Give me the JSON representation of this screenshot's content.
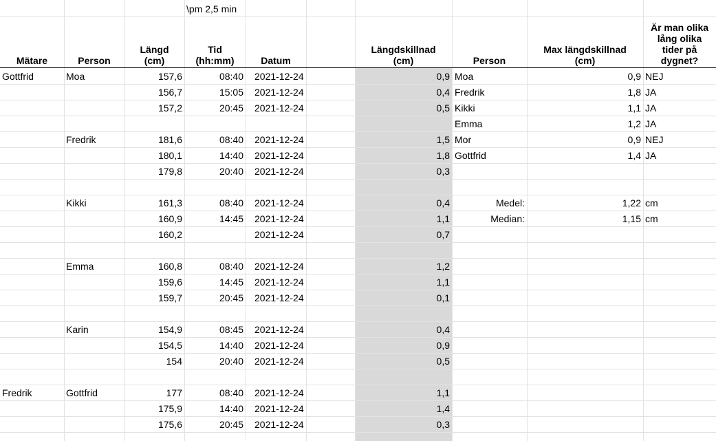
{
  "note_cell": "\\pm 2,5 min",
  "headers": {
    "matare": "Mätare",
    "person": "Person",
    "langd": "Längd\n(cm)",
    "tid": "Tid\n(hh:mm)",
    "datum": "Datum",
    "langdskillnad": "Längdskillnad\n(cm)",
    "person2": "Person",
    "max_langdskillnad": "Max längdskillnad\n(cm)",
    "olika": "Är man olika\nlång olika\ntider på\ndygnet?"
  },
  "rows": [
    {
      "matare": "Gottfrid",
      "person": "Moa",
      "langd": "157,6",
      "tid": "08:40",
      "datum": "2021-12-24",
      "diff": "0,9",
      "p2": "Moa",
      "max": "0,9",
      "svar": "NEJ"
    },
    {
      "matare": "",
      "person": "",
      "langd": "156,7",
      "tid": "15:05",
      "datum": "2021-12-24",
      "diff": "0,4",
      "p2": "Fredrik",
      "max": "1,8",
      "svar": "JA"
    },
    {
      "matare": "",
      "person": "",
      "langd": "157,2",
      "tid": "20:45",
      "datum": "2021-12-24",
      "diff": "0,5",
      "p2": "Kikki",
      "max": "1,1",
      "svar": "JA"
    },
    {
      "matare": "",
      "person": "",
      "langd": "",
      "tid": "",
      "datum": "",
      "diff": "",
      "p2": "Emma",
      "max": "1,2",
      "svar": "JA"
    },
    {
      "matare": "",
      "person": "Fredrik",
      "langd": "181,6",
      "tid": "08:40",
      "datum": "2021-12-24",
      "diff": "1,5",
      "p2": "Mor",
      "max": "0,9",
      "svar": "NEJ"
    },
    {
      "matare": "",
      "person": "",
      "langd": "180,1",
      "tid": "14:40",
      "datum": "2021-12-24",
      "diff": "1,8",
      "p2": "Gottfrid",
      "max": "1,4",
      "svar": "JA"
    },
    {
      "matare": "",
      "person": "",
      "langd": "179,8",
      "tid": "20:40",
      "datum": "2021-12-24",
      "diff": "0,3",
      "p2": "",
      "max": "",
      "svar": ""
    },
    {
      "matare": "",
      "person": "",
      "langd": "",
      "tid": "",
      "datum": "",
      "diff": "",
      "p2": "",
      "max": "",
      "svar": ""
    },
    {
      "matare": "",
      "person": "Kikki",
      "langd": "161,3",
      "tid": "08:40",
      "datum": "2021-12-24",
      "diff": "0,4",
      "p2": "",
      "max": "",
      "svar": ""
    },
    {
      "matare": "",
      "person": "",
      "langd": "160,9",
      "tid": "14:45",
      "datum": "2021-12-24",
      "diff": "1,1",
      "p2": "",
      "max": "",
      "svar": ""
    },
    {
      "matare": "",
      "person": "",
      "langd": "160,2",
      "tid": "",
      "datum": "2021-12-24",
      "diff": "0,7",
      "p2": "",
      "max": "",
      "svar": ""
    },
    {
      "matare": "",
      "person": "",
      "langd": "",
      "tid": "",
      "datum": "",
      "diff": "",
      "p2": "",
      "max": "",
      "svar": ""
    },
    {
      "matare": "",
      "person": "Emma",
      "langd": "160,8",
      "tid": "08:40",
      "datum": "2021-12-24",
      "diff": "1,2",
      "p2": "",
      "max": "",
      "svar": ""
    },
    {
      "matare": "",
      "person": "",
      "langd": "159,6",
      "tid": "14:45",
      "datum": "2021-12-24",
      "diff": "1,1",
      "p2": "",
      "max": "",
      "svar": ""
    },
    {
      "matare": "",
      "person": "",
      "langd": "159,7",
      "tid": "20:45",
      "datum": "2021-12-24",
      "diff": "0,1",
      "p2": "",
      "max": "",
      "svar": ""
    },
    {
      "matare": "",
      "person": "",
      "langd": "",
      "tid": "",
      "datum": "",
      "diff": "",
      "p2": "",
      "max": "",
      "svar": ""
    },
    {
      "matare": "",
      "person": "Karin",
      "langd": "154,9",
      "tid": "08:45",
      "datum": "2021-12-24",
      "diff": "0,4",
      "p2": "",
      "max": "",
      "svar": ""
    },
    {
      "matare": "",
      "person": "",
      "langd": "154,5",
      "tid": "14:40",
      "datum": "2021-12-24",
      "diff": "0,9",
      "p2": "",
      "max": "",
      "svar": ""
    },
    {
      "matare": "",
      "person": "",
      "langd": "154",
      "tid": "20:40",
      "datum": "2021-12-24",
      "diff": "0,5",
      "p2": "",
      "max": "",
      "svar": ""
    },
    {
      "matare": "",
      "person": "",
      "langd": "",
      "tid": "",
      "datum": "",
      "diff": "",
      "p2": "",
      "max": "",
      "svar": ""
    },
    {
      "matare": "Fredrik",
      "person": "Gottfrid",
      "langd": "177",
      "tid": "08:40",
      "datum": "2021-12-24",
      "diff": "1,1",
      "p2": "",
      "max": "",
      "svar": ""
    },
    {
      "matare": "",
      "person": "",
      "langd": "175,9",
      "tid": "14:40",
      "datum": "2021-12-24",
      "diff": "1,4",
      "p2": "",
      "max": "",
      "svar": ""
    },
    {
      "matare": "",
      "person": "",
      "langd": "175,6",
      "tid": "20:45",
      "datum": "2021-12-24",
      "diff": "0,3",
      "p2": "",
      "max": "",
      "svar": ""
    }
  ],
  "stats": {
    "medel_label": "Medel:",
    "medel_value": "1,22",
    "medel_unit": "cm",
    "median_label": "Median:",
    "median_value": "1,15",
    "median_unit": "cm"
  }
}
